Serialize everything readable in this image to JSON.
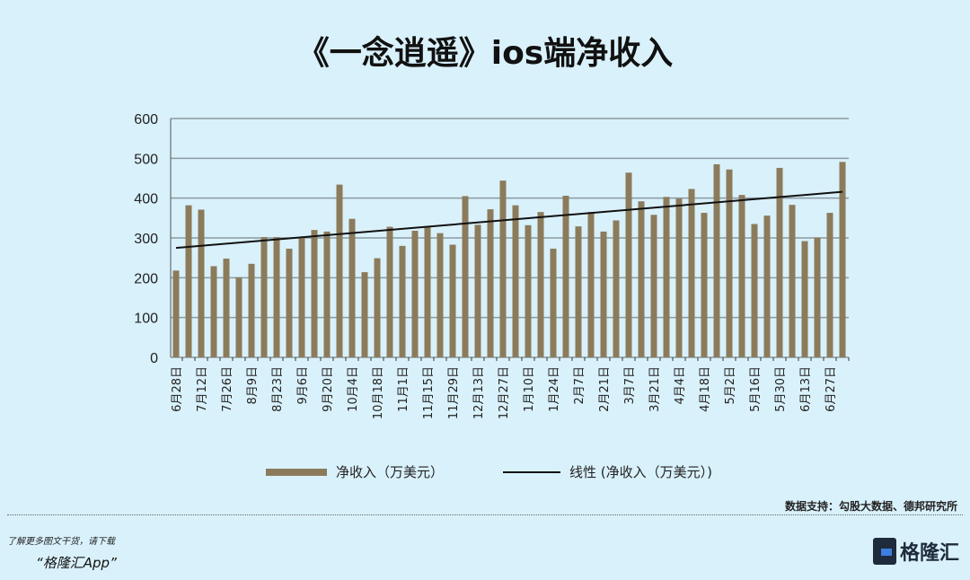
{
  "chart_data": {
    "type": "bar",
    "title": "《一念逍遥》ios端净收入",
    "ylim": [
      0,
      600
    ],
    "yticks": [
      0,
      100,
      200,
      300,
      400,
      500,
      600
    ],
    "grid": true,
    "legend_position": "bottom",
    "x_tick_labels": [
      "6月28日",
      "7月12日",
      "7月26日",
      "8月9日",
      "8月23日",
      "9月6日",
      "9月20日",
      "10月4日",
      "10月18日",
      "11月1日",
      "11月15日",
      "11月29日",
      "12月13日",
      "12月27日",
      "1月10日",
      "1月24日",
      "2月7日",
      "2月21日",
      "3月7日",
      "3月21日",
      "4月4日",
      "4月18日",
      "5月2日",
      "5月16日",
      "5月30日",
      "6月13日",
      "6月27日"
    ],
    "series": [
      {
        "name": "净收入（万美元）",
        "type": "bar",
        "color": "#8c7b5b",
        "values": [
          218,
          382,
          371,
          229,
          248,
          201,
          235,
          302,
          302,
          273,
          299,
          320,
          316,
          434,
          348,
          214,
          249,
          328,
          280,
          318,
          327,
          312,
          283,
          405,
          333,
          372,
          444,
          382,
          332,
          365,
          273,
          406,
          329,
          365,
          316,
          344,
          464,
          392,
          358,
          403,
          399,
          423,
          363,
          485,
          472,
          408,
          335,
          356,
          476,
          383,
          292,
          301,
          363,
          491
        ]
      },
      {
        "name": "线性 (净收入（万美元）)",
        "type": "trendline",
        "color": "#111111",
        "start": 275,
        "end": 416
      }
    ]
  },
  "source": "数据支持：勾股大数据、德邦研究所",
  "footer": {
    "line1": "了解更多图文干货，请下载",
    "line2": "“格隆汇App”",
    "logo_text": "格隆汇"
  },
  "colors": {
    "background": "#d9f1fb",
    "bar": "#8c7b5b",
    "grid": "#8a9aa0"
  }
}
